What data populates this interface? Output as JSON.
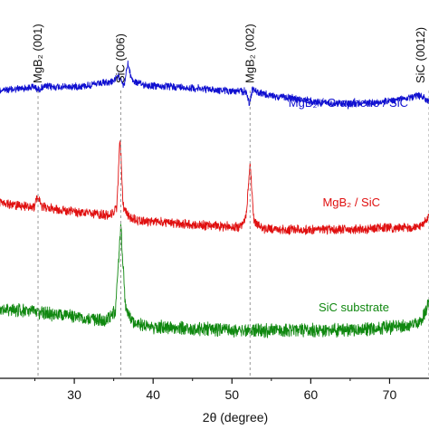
{
  "chart_data": {
    "type": "line",
    "xlabel": "2θ (degree)",
    "ylabel": "",
    "xlim": [
      20,
      75
    ],
    "x_ticks": [
      30,
      40,
      50,
      60,
      70
    ],
    "grid": false,
    "series": [
      {
        "name": "MgB₂ / Graphene / SiC",
        "color": "#1010d0",
        "noise": 3.5,
        "x": [
          20,
          22,
          24,
          25,
          25.4,
          26,
          27,
          29,
          31,
          33,
          34.5,
          35.4,
          35.7,
          36.0,
          36.3,
          36.5,
          36.8,
          37.1,
          37.5,
          38.5,
          40,
          43,
          46,
          49,
          51,
          51.8,
          52.2,
          52.6,
          53.2,
          55,
          58,
          61,
          64,
          67,
          70,
          72,
          74,
          75
        ],
        "y": [
          100,
          99,
          97,
          96,
          99,
          96,
          96,
          96,
          95,
          93,
          91,
          87,
          84,
          88,
          95,
          85,
          70,
          82,
          90,
          93,
          95,
          96,
          98,
          100,
          101,
          101,
          115,
          98,
          102,
          106,
          109,
          113,
          114,
          114,
          112,
          108,
          106,
          112
        ]
      },
      {
        "name": "MgB₂ / SiC",
        "color": "#e01010",
        "noise": 4.5,
        "x": [
          20,
          22,
          24,
          25,
          25.4,
          25.8,
          27,
          29,
          31,
          33,
          34.5,
          35.4,
          35.8,
          36.2,
          37,
          38.5,
          40,
          43,
          46,
          49,
          51,
          51.8,
          52.3,
          52.8,
          54,
          57,
          60,
          63,
          66,
          69,
          72,
          74,
          75
        ],
        "y": [
          223,
          226,
          228,
          228,
          215,
          228,
          230,
          233,
          235,
          237,
          238,
          230,
          150,
          228,
          241,
          244,
          245,
          247,
          249,
          250,
          251,
          240,
          180,
          245,
          253,
          254,
          254,
          254,
          253,
          252,
          252,
          250,
          240
        ]
      },
      {
        "name": "SiC substrate",
        "color": "#108810",
        "noise": 6.5,
        "x": [
          20,
          22,
          24,
          26,
          28,
          30,
          32,
          34,
          35.2,
          35.9,
          36.5,
          37.5,
          39,
          42,
          45,
          48,
          51,
          54,
          57,
          60,
          63,
          66,
          69,
          72,
          74,
          75
        ],
        "y": [
          341,
          342,
          344,
          346,
          348,
          350,
          352,
          354,
          345,
          250,
          340,
          356,
          360,
          362,
          363,
          364,
          365,
          365,
          365,
          365,
          365,
          364,
          363,
          360,
          355,
          335
        ]
      }
    ],
    "annotations": [
      {
        "label": "MgB₂ (001)",
        "x": 25.4
      },
      {
        "label": "SiC (006)",
        "x": 35.9
      },
      {
        "label": "MgB₂ (002)",
        "x": 52.3
      },
      {
        "label": "SiC (0012)",
        "x": 75
      }
    ]
  }
}
